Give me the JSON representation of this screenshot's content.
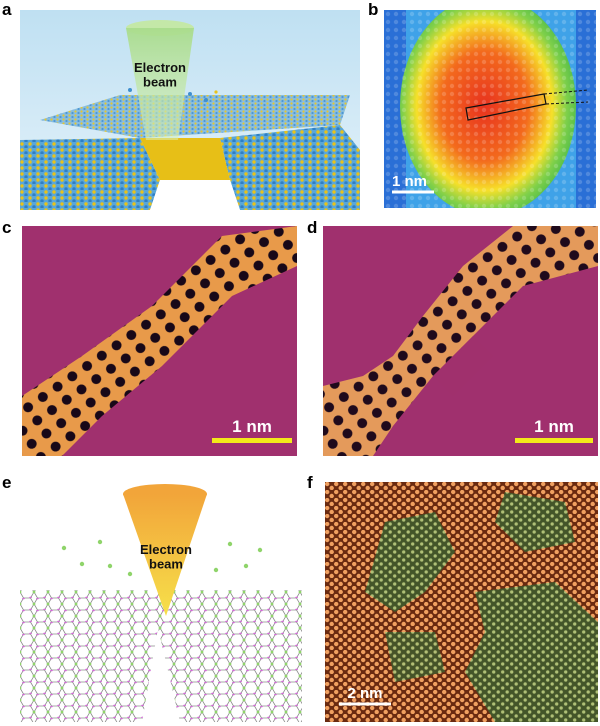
{
  "figure": {
    "panels": [
      {
        "id": "a",
        "label": "a",
        "annotation": "Electron\nbeam"
      },
      {
        "id": "b",
        "label": "b",
        "scale_bar": "1 nm"
      },
      {
        "id": "c",
        "label": "c",
        "scale_bar": "1 nm"
      },
      {
        "id": "d",
        "label": "d",
        "scale_bar": "1 nm"
      },
      {
        "id": "e",
        "label": "e",
        "annotation": "Electron\nbeam"
      },
      {
        "id": "f",
        "label": "f",
        "scale_bar": "2 nm"
      }
    ]
  },
  "colors": {
    "sky": "#cfe6f3",
    "yellow_atom": "#e8c21a",
    "blue_atom": "#3f8fd0",
    "heat_red": "#e8321e",
    "magenta_bg": "#a0306e",
    "scalebar_yellow": "#f2ea1a",
    "pink_atom": "#d46ad8",
    "green_atom": "#8fd46a",
    "stem_orange": "#d87a30",
    "stem_green": "#4f6a36"
  }
}
